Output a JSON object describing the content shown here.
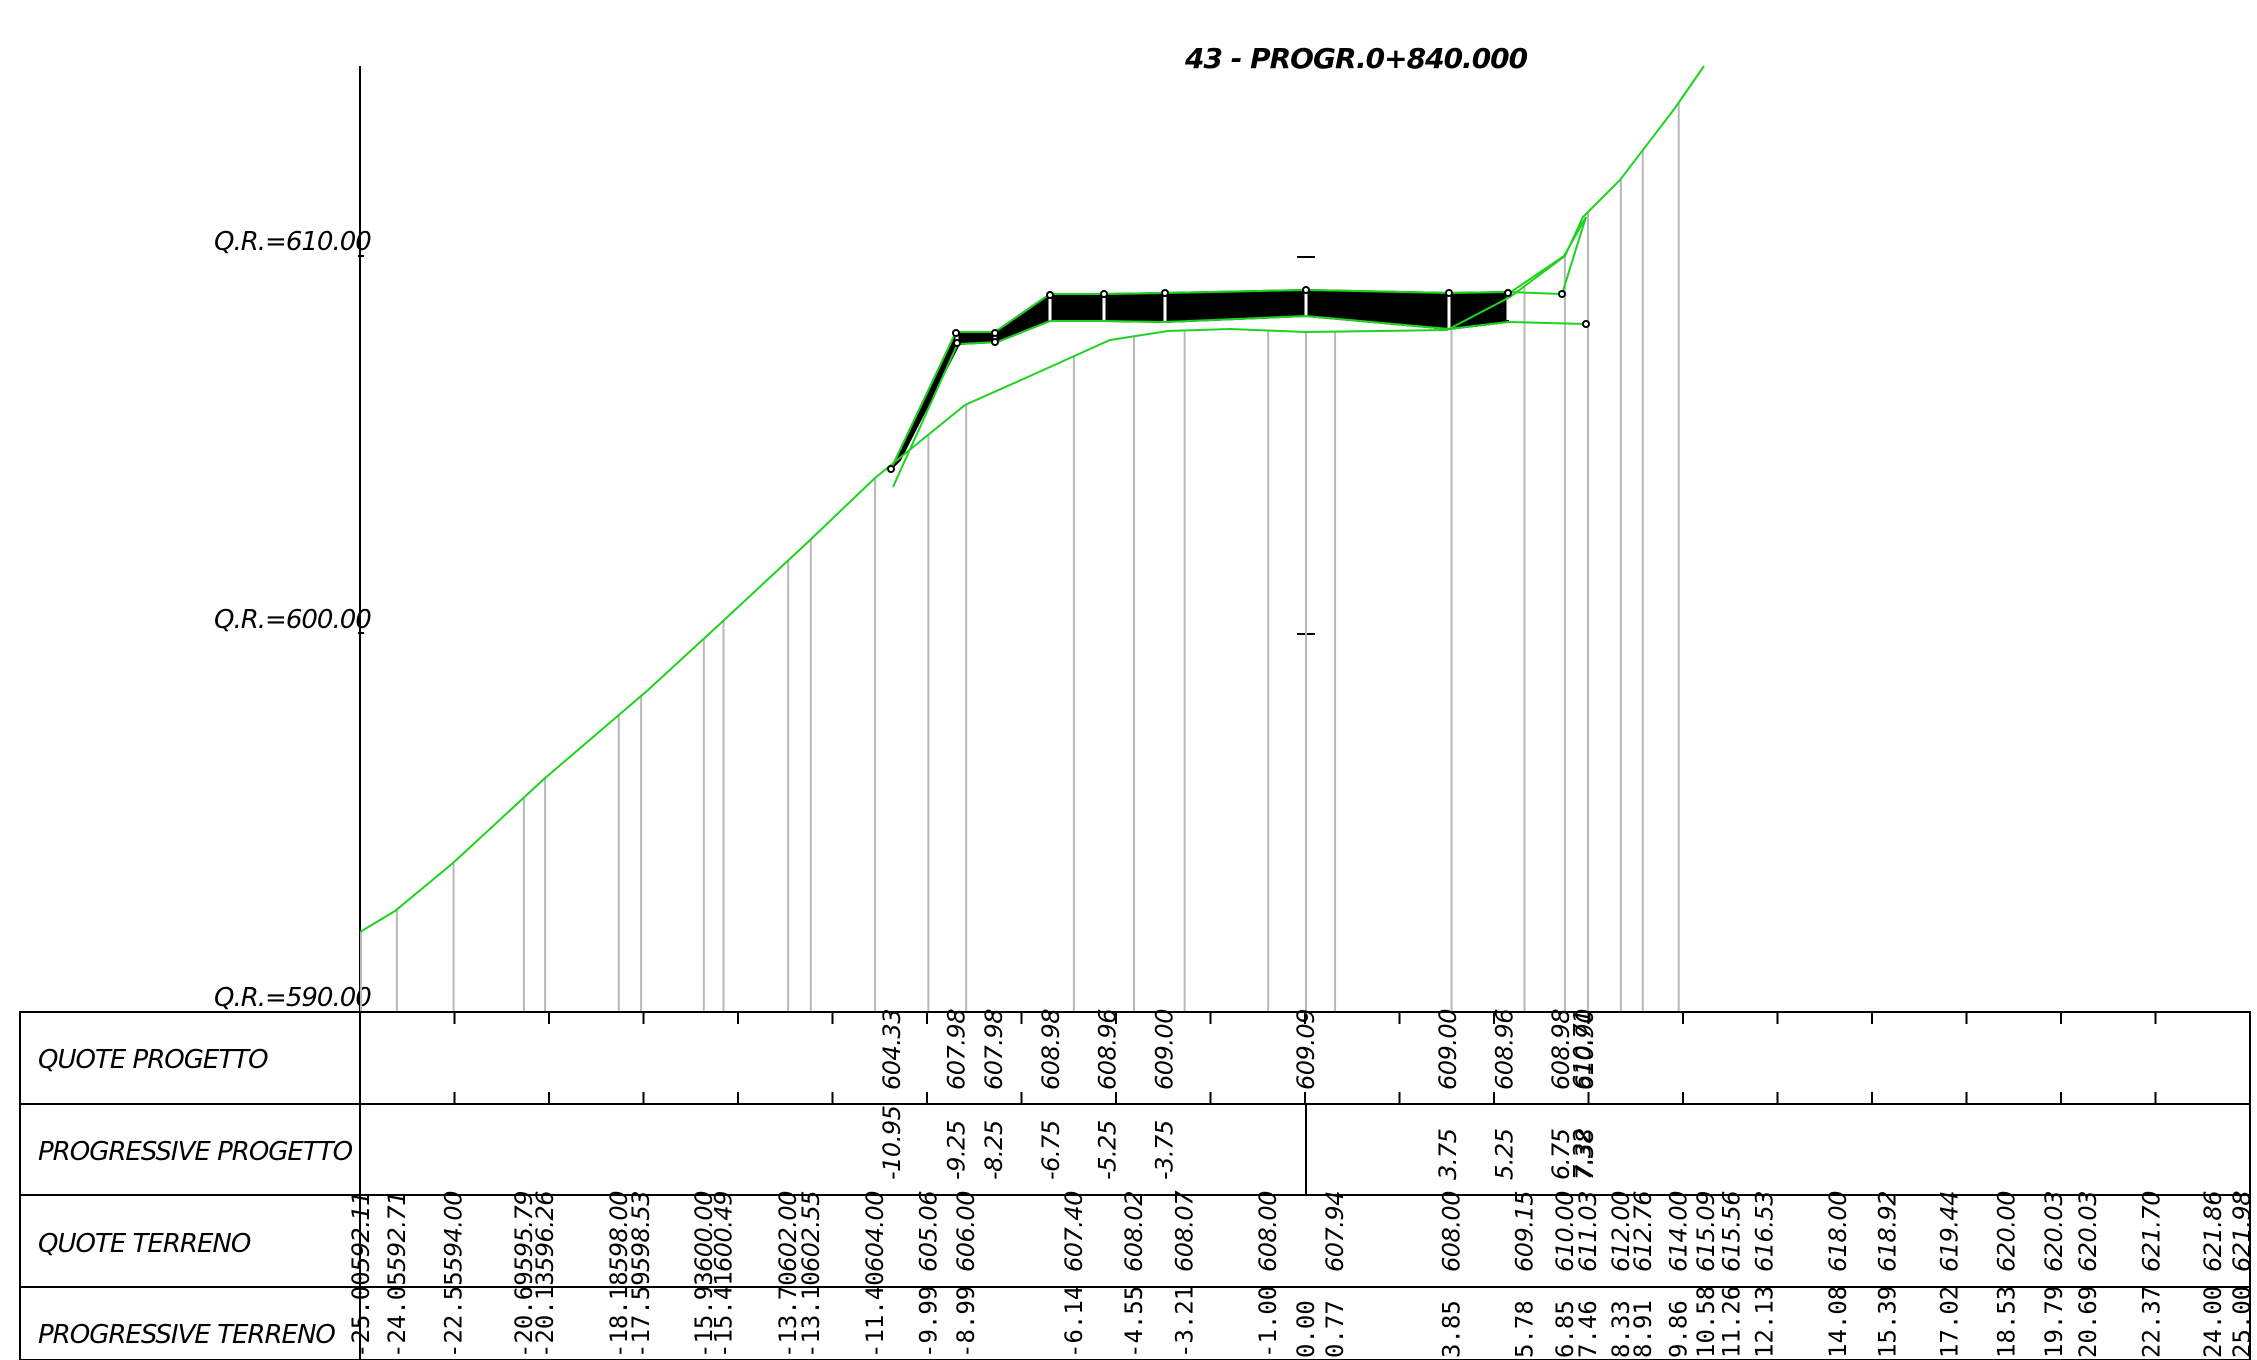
{
  "section_title": "43 - PROGR.0+840.000",
  "reference_levels": [
    "Q.R.=610.00",
    "Q.R.=600.00",
    "Q.R.=590.00"
  ],
  "rows": {
    "quote_progetto": "QUOTE PROGETTO",
    "progressive_progetto": "PROGRESSIVE PROGETTO",
    "quote_terreno": "QUOTE TERRENO",
    "progressive_terreno": "PROGRESSIVE TERRENO"
  },
  "chart_data": {
    "type": "line",
    "title": "43 - PROGR.0+840.000",
    "y_reference_lines": [
      590,
      600,
      610
    ],
    "xlim": [
      -25,
      25
    ],
    "ground": {
      "progressive": [
        "-25.00",
        "-24.05",
        "-22.55",
        "-20.69",
        "-20.13",
        "-18.18",
        "-17.59",
        "-15.93",
        "-15.41",
        "-13.70",
        "-13.10",
        "-11.40",
        "-9.99",
        "-8.99",
        "-6.14",
        "-4.55",
        "-3.21",
        "-1.00",
        "0.00",
        "0.77",
        "3.85",
        "5.78",
        "6.85",
        "7.46",
        "8.33",
        "8.91",
        "9.86",
        "10.58",
        "11.26",
        "12.13",
        "14.08",
        "15.39",
        "17.02",
        "18.53",
        "19.79",
        "20.69",
        "22.37",
        "24.00",
        "25.00"
      ],
      "elevations": [
        "592.11",
        "592.71",
        "594.00",
        "595.79",
        "596.26",
        "598.00",
        "598.53",
        "600.00",
        "600.49",
        "602.00",
        "602.55",
        "604.00",
        "605.06",
        "606.00",
        "607.40",
        "608.02",
        "608.07",
        "608.00",
        "",
        "607.94",
        "608.00",
        "609.15",
        "610.00",
        "611.03",
        "612.00",
        "612.76",
        "614.00",
        "615.09",
        "615.56",
        "616.53",
        "618.00",
        "618.92",
        "619.44",
        "620.00",
        "620.03",
        "620.03",
        "621.70",
        "621.86",
        "621.98"
      ]
    },
    "project": {
      "progressive": [
        "-10.95",
        "-9.25",
        "-8.25",
        "-6.75",
        "-5.25",
        "-3.75",
        "",
        "3.75",
        "5.25",
        "6.75",
        "7.32",
        "7.38"
      ],
      "elevations": [
        "604.33",
        "607.98",
        "607.98",
        "608.98",
        "608.96",
        "609.00",
        "609.09",
        "609.00",
        "608.96",
        "608.98",
        "610.71",
        "610.90"
      ]
    }
  }
}
